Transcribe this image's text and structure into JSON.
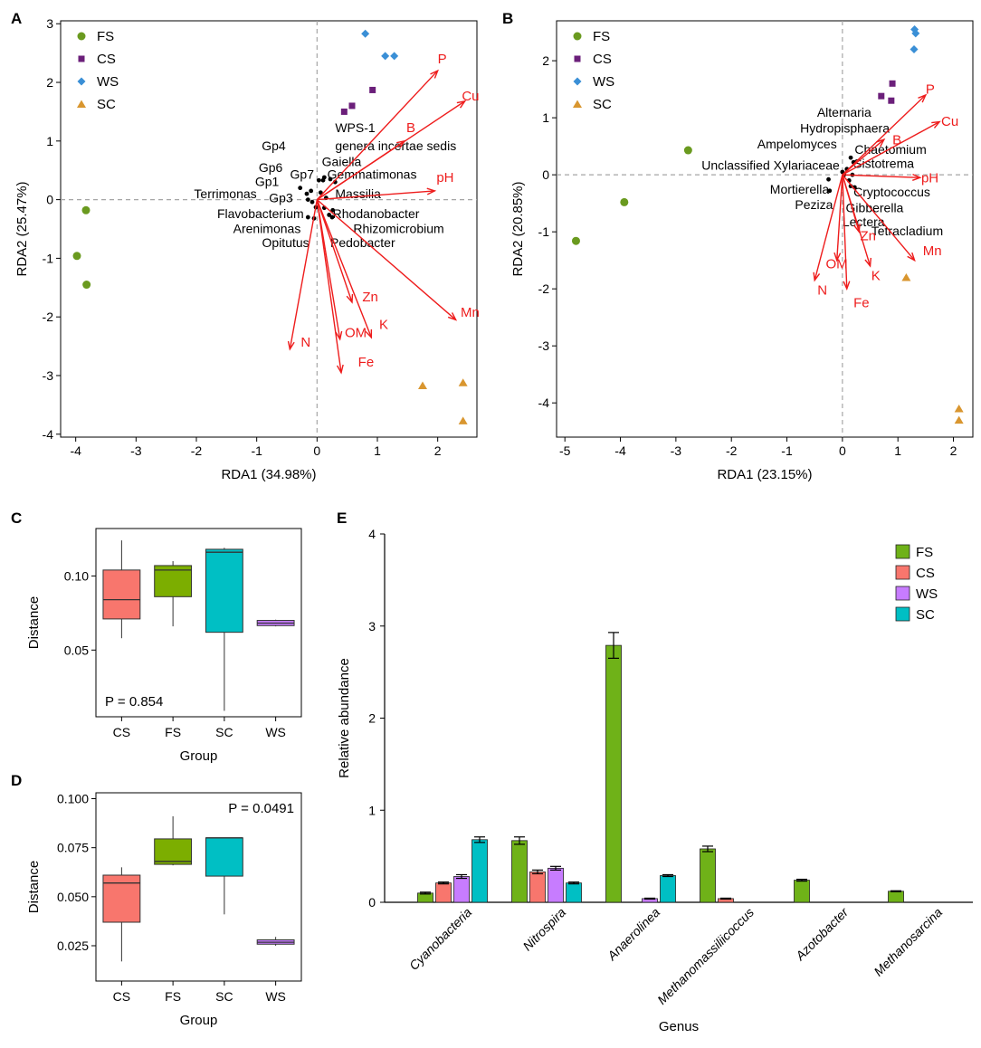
{
  "colors": {
    "FS": "#6a9a1f",
    "CS": "#6b1f7a",
    "WS": "#3a8fd6",
    "SC": "#d9962f",
    "vector": "#ee1c1c",
    "grey_dash": "#a6a6a6",
    "box": {
      "CS": "#f8766d",
      "FS": "#7cae00",
      "SC": "#00bfc4",
      "WS": "#c77cff"
    },
    "bar": {
      "FS": "#6fb218",
      "CS": "#f8766d",
      "WS": "#c77cff",
      "SC": "#00bfc4"
    }
  },
  "panels": {
    "A": {
      "tag": "A"
    },
    "B": {
      "tag": "B"
    },
    "C": {
      "tag": "C"
    },
    "D": {
      "tag": "D"
    },
    "E": {
      "tag": "E"
    }
  },
  "chart_data": [
    {
      "id": "A",
      "type": "scatter",
      "title": "",
      "xlabel": "RDA1  (34.98%)",
      "ylabel": "RDA2  (25.47%)",
      "xlim": [
        -4.25,
        2.65
      ],
      "ylim": [
        -4.05,
        3.05
      ],
      "xticks": [
        -4,
        -3,
        -2,
        -1,
        0,
        1,
        2
      ],
      "yticks": [
        -4,
        -3,
        -2,
        -1,
        0,
        1,
        2,
        3
      ],
      "legend": {
        "placement": "top-left",
        "entries": [
          "FS",
          "CS",
          "WS",
          "SC"
        ]
      },
      "series": [
        {
          "name": "FS",
          "marker": "circle",
          "points": [
            [
              -3.83,
              -0.18
            ],
            [
              -3.98,
              -0.96
            ],
            [
              -3.82,
              -1.45
            ]
          ]
        },
        {
          "name": "CS",
          "marker": "square",
          "points": [
            [
              0.45,
              1.5
            ],
            [
              0.58,
              1.6
            ],
            [
              0.92,
              1.87
            ]
          ]
        },
        {
          "name": "WS",
          "marker": "diamond",
          "points": [
            [
              0.8,
              2.83
            ],
            [
              1.13,
              2.45
            ],
            [
              1.28,
              2.45
            ]
          ]
        },
        {
          "name": "SC",
          "marker": "triangle",
          "points": [
            [
              1.75,
              -3.17
            ],
            [
              2.42,
              -3.12
            ],
            [
              2.42,
              -3.77
            ]
          ]
        }
      ],
      "vectors": [
        {
          "label": "P",
          "end": [
            2.0,
            2.2
          ],
          "label_pos": [
            2.0,
            2.4
          ]
        },
        {
          "label": "Cu",
          "end": [
            2.45,
            1.68
          ],
          "label_pos": [
            2.4,
            1.77
          ]
        },
        {
          "label": "B",
          "end": [
            1.45,
            1.0
          ],
          "label_pos": [
            1.48,
            1.23
          ]
        },
        {
          "label": "pH",
          "end": [
            1.95,
            0.15
          ],
          "label_pos": [
            1.98,
            0.38
          ]
        },
        {
          "label": "Zn",
          "end": [
            0.58,
            -1.75
          ],
          "label_pos": [
            0.75,
            -1.66
          ]
        },
        {
          "label": "K",
          "end": [
            0.9,
            -2.35
          ],
          "label_pos": [
            1.03,
            -2.13
          ]
        },
        {
          "label": "Mn",
          "end": [
            2.3,
            -2.05
          ],
          "label_pos": [
            2.38,
            -1.92
          ]
        },
        {
          "label": "OM",
          "end": [
            0.38,
            -2.38
          ],
          "label_pos": [
            0.46,
            -2.27
          ]
        },
        {
          "label": "Fe",
          "end": [
            0.4,
            -2.95
          ],
          "label_pos": [
            0.68,
            -2.77
          ]
        },
        {
          "label": "N",
          "end": [
            -0.45,
            -2.55
          ],
          "label_pos": [
            -0.27,
            -2.43
          ]
        }
      ],
      "taxa": [
        {
          "label": "WPS-1",
          "pos": [
            0.3,
            1.23
          ],
          "anchor": "start"
        },
        {
          "label": "genera incertae sedis",
          "pos": [
            0.3,
            0.92
          ],
          "anchor": "start"
        },
        {
          "label": "Gp4",
          "pos": [
            -0.52,
            0.92
          ],
          "anchor": "end"
        },
        {
          "label": "Gaiella",
          "pos": [
            0.08,
            0.65
          ],
          "anchor": "start"
        },
        {
          "label": "Gp6",
          "pos": [
            -0.57,
            0.55
          ],
          "anchor": "end"
        },
        {
          "label": "Gp7",
          "pos": [
            -0.05,
            0.43
          ],
          "anchor": "end"
        },
        {
          "label": "Gemmatimonas",
          "pos": [
            0.17,
            0.43
          ],
          "anchor": "start"
        },
        {
          "label": "Gp1",
          "pos": [
            -0.63,
            0.31
          ],
          "anchor": "end"
        },
        {
          "label": "Terrimonas",
          "pos": [
            -1.0,
            0.1
          ],
          "anchor": "end"
        },
        {
          "label": "Massilia",
          "pos": [
            0.3,
            0.1
          ],
          "anchor": "start"
        },
        {
          "label": "Gp3",
          "pos": [
            -0.4,
            0.03
          ],
          "anchor": "end"
        },
        {
          "label": "Flavobacterium",
          "pos": [
            -0.22,
            -0.24
          ],
          "anchor": "end"
        },
        {
          "label": "Rhodanobacter",
          "pos": [
            0.26,
            -0.24
          ],
          "anchor": "start"
        },
        {
          "label": "Arenimonas",
          "pos": [
            -0.27,
            -0.49
          ],
          "anchor": "end"
        },
        {
          "label": "Rhizomicrobium",
          "pos": [
            0.6,
            -0.49
          ],
          "anchor": "start"
        },
        {
          "label": "Opitutus",
          "pos": [
            -0.13,
            -0.73
          ],
          "anchor": "end"
        },
        {
          "label": "Pedobacter",
          "pos": [
            0.22,
            -0.73
          ],
          "anchor": "start"
        }
      ],
      "taxa_points": [
        [
          -0.17,
          0.1
        ],
        [
          0.03,
          0.33
        ],
        [
          0.1,
          0.33
        ],
        [
          0.12,
          0.38
        ],
        [
          0.22,
          0.35
        ],
        [
          0.3,
          0.3
        ],
        [
          -0.28,
          0.2
        ],
        [
          -0.1,
          0.15
        ],
        [
          0.06,
          0.12
        ],
        [
          0.15,
          0.03
        ],
        [
          -0.15,
          0.0
        ],
        [
          -0.08,
          -0.04
        ],
        [
          -0.02,
          -0.13
        ],
        [
          0.12,
          -0.14
        ],
        [
          0.26,
          -0.18
        ],
        [
          0.2,
          -0.26
        ],
        [
          -0.15,
          -0.3
        ],
        [
          -0.05,
          -0.32
        ],
        [
          0.25,
          -0.3
        ]
      ]
    },
    {
      "id": "B",
      "type": "scatter",
      "title": "",
      "xlabel": "RDA1  (23.15%)",
      "ylabel": "RDA2  (20.85%)",
      "xlim": [
        -5.15,
        2.35
      ],
      "ylim": [
        -4.6,
        2.7
      ],
      "xticks": [
        -5,
        -4,
        -3,
        -2,
        -1,
        0,
        1,
        2
      ],
      "yticks": [
        -4,
        -3,
        -2,
        -1,
        0,
        1,
        2
      ],
      "legend": {
        "placement": "top-left",
        "entries": [
          "FS",
          "CS",
          "WS",
          "SC"
        ]
      },
      "series": [
        {
          "name": "FS",
          "marker": "circle",
          "points": [
            [
              -2.78,
              0.43
            ],
            [
              -3.93,
              -0.48
            ],
            [
              -4.8,
              -1.16
            ]
          ]
        },
        {
          "name": "CS",
          "marker": "square",
          "points": [
            [
              0.7,
              1.38
            ],
            [
              0.88,
              1.3
            ],
            [
              0.9,
              1.6
            ]
          ]
        },
        {
          "name": "WS",
          "marker": "diamond",
          "points": [
            [
              1.3,
              2.55
            ],
            [
              1.32,
              2.48
            ],
            [
              1.29,
              2.2
            ]
          ]
        },
        {
          "name": "SC",
          "marker": "triangle",
          "points": [
            [
              1.15,
              -1.8
            ],
            [
              2.1,
              -4.1
            ],
            [
              2.1,
              -4.3
            ]
          ]
        }
      ],
      "vectors": [
        {
          "label": "P",
          "end": [
            1.5,
            1.4
          ],
          "label_pos": [
            1.5,
            1.5
          ]
        },
        {
          "label": "Cu",
          "end": [
            1.75,
            0.93
          ],
          "label_pos": [
            1.78,
            0.94
          ]
        },
        {
          "label": "B",
          "end": [
            0.75,
            0.62
          ],
          "label_pos": [
            0.9,
            0.61
          ]
        },
        {
          "label": "pH",
          "end": [
            1.4,
            -0.05
          ],
          "label_pos": [
            1.42,
            -0.05
          ]
        },
        {
          "label": "Zn",
          "end": [
            0.3,
            -1.0
          ],
          "label_pos": [
            0.32,
            -1.07
          ]
        },
        {
          "label": "K",
          "end": [
            0.5,
            -1.6
          ],
          "label_pos": [
            0.52,
            -1.77
          ]
        },
        {
          "label": "Mn",
          "end": [
            1.3,
            -1.5
          ],
          "label_pos": [
            1.45,
            -1.33
          ]
        },
        {
          "label": "OM",
          "end": [
            -0.1,
            -1.5
          ],
          "label_pos": [
            -0.3,
            -1.56
          ]
        },
        {
          "label": "Fe",
          "end": [
            0.08,
            -2.0
          ],
          "label_pos": [
            0.2,
            -2.24
          ]
        },
        {
          "label": "N",
          "end": [
            -0.5,
            -1.85
          ],
          "label_pos": [
            -0.45,
            -2.02
          ]
        }
      ],
      "taxa": [
        {
          "label": "Alternaria",
          "pos": [
            0.52,
            1.1
          ],
          "anchor": "end"
        },
        {
          "label": "Hydropisphaera",
          "pos": [
            0.85,
            0.82
          ],
          "anchor": "end"
        },
        {
          "label": "Ampelomyces",
          "pos": [
            -0.1,
            0.54
          ],
          "anchor": "end"
        },
        {
          "label": "Chaetomium",
          "pos": [
            0.22,
            0.45
          ],
          "anchor": "start"
        },
        {
          "label": "Sistotrema",
          "pos": [
            0.2,
            0.2
          ],
          "anchor": "start"
        },
        {
          "label": "Unclassified Xylariaceae",
          "pos": [
            -0.05,
            0.17
          ],
          "anchor": "end"
        },
        {
          "label": "Mortierella",
          "pos": [
            -0.24,
            -0.25
          ],
          "anchor": "end"
        },
        {
          "label": "Cryptococcus",
          "pos": [
            0.2,
            -0.3
          ],
          "anchor": "start"
        },
        {
          "label": "Peziza",
          "pos": [
            -0.17,
            -0.52
          ],
          "anchor": "end"
        },
        {
          "label": "Gibberella",
          "pos": [
            0.06,
            -0.58
          ],
          "anchor": "start"
        },
        {
          "label": "Lectera",
          "pos": [
            0.0,
            -0.82
          ],
          "anchor": "start"
        },
        {
          "label": "Tetracladium",
          "pos": [
            0.52,
            -0.98
          ],
          "anchor": "start"
        }
      ],
      "taxa_points": [
        [
          0.15,
          0.3
        ],
        [
          0.2,
          0.22
        ],
        [
          0.08,
          0.1
        ],
        [
          0.0,
          0.05
        ],
        [
          0.03,
          0.0
        ],
        [
          0.12,
          -0.1
        ],
        [
          0.18,
          0.0
        ],
        [
          -0.25,
          -0.08
        ],
        [
          -0.23,
          -0.28
        ],
        [
          0.15,
          -0.2
        ],
        [
          0.22,
          -0.22
        ]
      ]
    },
    {
      "id": "C",
      "type": "box",
      "xlabel": "Group",
      "ylabel": "Distance",
      "ylim": [
        0.005,
        0.132
      ],
      "yticks": [
        0.05,
        0.1
      ],
      "ytick_labels": [
        "0.05",
        "0.10"
      ],
      "annotation": "P = 0.854",
      "annotation_pos": "bottom-left",
      "categories": [
        "CS",
        "FS",
        "SC",
        "WS"
      ],
      "boxes": [
        {
          "name": "CS",
          "min": 0.058,
          "q1": 0.071,
          "median": 0.084,
          "q3": 0.104,
          "max": 0.124
        },
        {
          "name": "FS",
          "min": 0.066,
          "q1": 0.086,
          "median": 0.104,
          "q3": 0.107,
          "max": 0.11
        },
        {
          "name": "SC",
          "min": 0.009,
          "q1": 0.062,
          "median": 0.116,
          "q3": 0.118,
          "max": 0.119
        },
        {
          "name": "WS",
          "min": 0.066,
          "q1": 0.0665,
          "median": 0.0682,
          "q3": 0.07,
          "max": 0.0705
        }
      ]
    },
    {
      "id": "D",
      "type": "box",
      "xlabel": "Group",
      "ylabel": "Distance",
      "ylim": [
        0.007,
        0.103
      ],
      "yticks": [
        0.025,
        0.05,
        0.075,
        0.1
      ],
      "ytick_labels": [
        "0.025",
        "0.050",
        "0.075",
        "0.100"
      ],
      "annotation": "P = 0.0491",
      "annotation_pos": "top-right",
      "categories": [
        "CS",
        "FS",
        "SC",
        "WS"
      ],
      "boxes": [
        {
          "name": "CS",
          "min": 0.017,
          "q1": 0.037,
          "median": 0.057,
          "q3": 0.061,
          "max": 0.065
        },
        {
          "name": "FS",
          "min": 0.066,
          "q1": 0.0665,
          "median": 0.068,
          "q3": 0.0795,
          "max": 0.091
        },
        {
          "name": "SC",
          "min": 0.041,
          "q1": 0.0605,
          "median": 0.08,
          "q3": 0.08,
          "max": 0.08
        },
        {
          "name": "WS",
          "min": 0.025,
          "q1": 0.0258,
          "median": 0.0268,
          "q3": 0.028,
          "max": 0.0295
        }
      ]
    },
    {
      "id": "E",
      "type": "bar",
      "xlabel": "Genus",
      "ylabel": "Relative abundance",
      "ylim": [
        0,
        4
      ],
      "yticks": [
        0,
        1,
        2,
        3,
        4
      ],
      "legend": {
        "placement": "top-right",
        "entries": [
          "FS",
          "CS",
          "WS",
          "SC"
        ]
      },
      "categories": [
        "Cyanobacteria",
        "Nitrospira",
        "Anaerolinea",
        "Methanomassiliicoccus",
        "Azotobacter",
        "Methanosarcina"
      ],
      "series": [
        {
          "name": "FS",
          "values": [
            0.1,
            0.67,
            2.79,
            0.58,
            0.24,
            0.12
          ],
          "errors": [
            0.01,
            0.04,
            0.14,
            0.03,
            0.01,
            0.005
          ]
        },
        {
          "name": "CS",
          "values": [
            0.21,
            0.33,
            0.0,
            0.04,
            0.0,
            0.0
          ],
          "errors": [
            0.01,
            0.02,
            0.0,
            0.005,
            0.0,
            0.0
          ]
        },
        {
          "name": "WS",
          "values": [
            0.28,
            0.37,
            0.04,
            0.0,
            0.0,
            0.0
          ],
          "errors": [
            0.02,
            0.02,
            0.005,
            0.0,
            0.0,
            0.0
          ]
        },
        {
          "name": "SC",
          "values": [
            0.68,
            0.21,
            0.29,
            0.0,
            0.0,
            0.0
          ],
          "errors": [
            0.03,
            0.01,
            0.01,
            0.0,
            0.0,
            0.0
          ]
        }
      ]
    }
  ]
}
